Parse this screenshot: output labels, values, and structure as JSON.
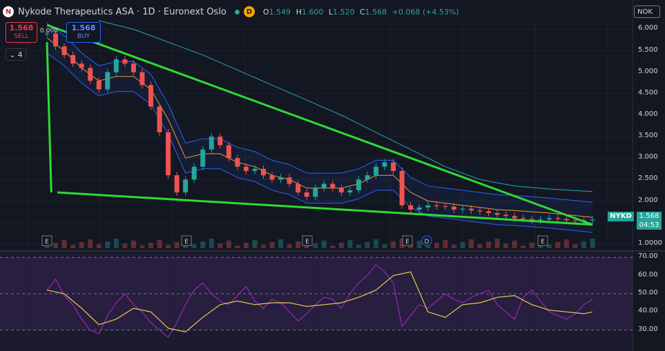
{
  "header": {
    "logo_glyph": "N",
    "title": "Nykode Therapeutics ASA · 1D · Euronext Oslo",
    "d_badge": "D",
    "o_label": "O",
    "o_value": "1.549",
    "h_label": "H",
    "h_value": "1.600",
    "l_label": "L",
    "l_value": "1.520",
    "c_label": "C",
    "c_value": "1.568",
    "change": "+0.068 (+4.53%)"
  },
  "trade": {
    "sell_price": "1.568",
    "sell_label": "SELL",
    "spread": "0.000",
    "buy_price": "1.568",
    "buy_label": "BUY"
  },
  "indicator_toggle": {
    "icon": "chevron-down-icon",
    "count": "4"
  },
  "currency": "NOK",
  "last_price": {
    "symbol": "NYKD",
    "price": "1.568",
    "countdown": "04:53"
  },
  "colors": {
    "up": "#26a69a",
    "down": "#ef5350",
    "trendline": "#2edc33",
    "bollinger": "#2962ff",
    "ma_orange": "#f59b2c",
    "ma_teal": "#26a6b8",
    "rsi": "#9c27b0",
    "rsi_ma": "#e8cf4a"
  },
  "chart_data": [
    {
      "type": "candlestick",
      "title": "",
      "y_ticks": [
        1.0,
        1.5,
        2.0,
        2.5,
        3.0,
        3.5,
        4.0,
        4.5,
        5.0,
        5.5,
        6.0
      ],
      "y_tick_labels": [
        "1.0000",
        "1.500",
        "2.000",
        "2.500",
        "3.000",
        "3.500",
        "4.000",
        "4.500",
        "5.000",
        "5.500",
        "6.000"
      ],
      "ylim": [
        0.9,
        6.2
      ],
      "grid": true,
      "series": [
        {
          "name": "",
          "kind": "close",
          "x": [
            0,
            10,
            20,
            30,
            40,
            50,
            60,
            70,
            80,
            90,
            100,
            110,
            120,
            130,
            140,
            150,
            160,
            170,
            180,
            190,
            200,
            210,
            220,
            230,
            240,
            250,
            260,
            270,
            280,
            290,
            300,
            310,
            320,
            330,
            340,
            350,
            360,
            370,
            380,
            390,
            400,
            410,
            420,
            430,
            440,
            450,
            460,
            470,
            480,
            490,
            500,
            510,
            520,
            530,
            540,
            550,
            560,
            570,
            580,
            590,
            600,
            610,
            620,
            630
          ],
          "values": [
            5.9,
            5.6,
            5.4,
            5.2,
            5.1,
            4.8,
            4.6,
            5.0,
            5.3,
            5.2,
            5.0,
            4.7,
            4.2,
            3.6,
            2.6,
            2.2,
            2.5,
            2.8,
            3.2,
            3.5,
            3.3,
            3.0,
            2.8,
            2.7,
            2.75,
            2.6,
            2.5,
            2.55,
            2.4,
            2.2,
            2.1,
            2.3,
            2.4,
            2.3,
            2.2,
            2.25,
            2.5,
            2.6,
            2.8,
            2.9,
            2.7,
            1.9,
            1.8,
            1.85,
            1.9,
            1.88,
            1.87,
            1.8,
            1.82,
            1.78,
            1.76,
            1.72,
            1.68,
            1.65,
            1.6,
            1.58,
            1.55,
            1.57,
            1.6,
            1.58,
            1.55,
            1.54,
            1.55,
            1.568
          ]
        },
        {
          "name": "",
          "kind": "ma_orange",
          "x": [
            0,
            20,
            40,
            60,
            80,
            100,
            120,
            140,
            160,
            180,
            200,
            220,
            240,
            260,
            280,
            300,
            320,
            340,
            360,
            380,
            400,
            420,
            440,
            460,
            480,
            500,
            520,
            540,
            560,
            580,
            600,
            620,
            630
          ],
          "values": [
            5.8,
            5.5,
            5.1,
            4.8,
            4.9,
            4.9,
            4.6,
            3.9,
            3.0,
            3.1,
            3.1,
            2.9,
            2.8,
            2.6,
            2.5,
            2.3,
            2.3,
            2.3,
            2.4,
            2.6,
            2.6,
            2.2,
            2.0,
            1.95,
            1.9,
            1.85,
            1.8,
            1.78,
            1.75,
            1.72,
            1.68,
            1.64,
            1.62
          ]
        },
        {
          "name": "",
          "kind": "ma_teal",
          "x": [
            60,
            100,
            140,
            180,
            220,
            260,
            300,
            340,
            380,
            420,
            460,
            500,
            540,
            580,
            630
          ],
          "values": [
            6.2,
            6.0,
            5.7,
            5.4,
            5.05,
            4.7,
            4.35,
            4.0,
            3.6,
            3.2,
            2.8,
            2.5,
            2.35,
            2.28,
            2.22
          ]
        },
        {
          "name": "",
          "kind": "trendlines",
          "segments": [
            {
              "x": [
                0,
                5
              ],
              "y": [
                5.7,
                2.2
              ]
            },
            {
              "x": [
                0,
                630
              ],
              "y": [
                6.1,
                1.45
              ]
            },
            {
              "x": [
                12,
                630
              ],
              "y": [
                2.2,
                1.45
              ]
            }
          ]
        }
      ],
      "earnings_markers": [
        "E",
        "E",
        "E",
        "E",
        "D",
        "E"
      ]
    },
    {
      "type": "line",
      "title": "",
      "y_ticks": [
        30,
        40,
        50,
        60,
        70
      ],
      "y_tick_labels": [
        "30.00",
        "40.00",
        "50.00",
        "60.00",
        "70.00"
      ],
      "ylim": [
        20,
        72
      ],
      "bands": [
        30,
        50,
        70
      ],
      "series": [
        {
          "name": "",
          "kind": "rsi",
          "x": [
            0,
            10,
            20,
            30,
            40,
            50,
            60,
            70,
            80,
            90,
            100,
            110,
            120,
            130,
            140,
            150,
            160,
            170,
            180,
            190,
            200,
            210,
            220,
            230,
            240,
            250,
            260,
            270,
            280,
            290,
            300,
            310,
            320,
            330,
            340,
            350,
            360,
            370,
            380,
            390,
            400,
            410,
            420,
            430,
            440,
            450,
            460,
            470,
            480,
            490,
            500,
            510,
            520,
            530,
            540,
            550,
            560,
            570,
            580,
            590,
            600,
            610,
            620,
            630
          ],
          "values": [
            52,
            58,
            49,
            44,
            36,
            30,
            28,
            38,
            45,
            50,
            44,
            40,
            34,
            30,
            26,
            34,
            44,
            52,
            56,
            50,
            46,
            44,
            49,
            54,
            46,
            42,
            47,
            45,
            40,
            35,
            39,
            44,
            48,
            47,
            42,
            50,
            56,
            60,
            66,
            62,
            56,
            32,
            38,
            44,
            42,
            46,
            50,
            47,
            45,
            48,
            50,
            52,
            44,
            40,
            36,
            48,
            52,
            46,
            40,
            38,
            36,
            39,
            44,
            47
          ]
        },
        {
          "name": "",
          "kind": "rsi_ma",
          "x": [
            0,
            20,
            40,
            60,
            80,
            100,
            120,
            140,
            160,
            180,
            200,
            220,
            240,
            260,
            280,
            300,
            320,
            340,
            360,
            380,
            400,
            420,
            440,
            460,
            480,
            500,
            520,
            540,
            560,
            580,
            600,
            620,
            630
          ],
          "values": [
            52,
            50,
            42,
            33,
            36,
            42,
            40,
            31,
            29,
            37,
            44,
            46,
            44,
            45,
            45,
            43,
            44,
            45,
            48,
            52,
            60,
            62,
            40,
            37,
            44,
            45,
            48,
            49,
            44,
            41,
            40,
            39,
            40
          ]
        }
      ]
    }
  ]
}
